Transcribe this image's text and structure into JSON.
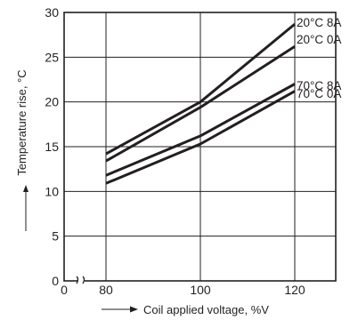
{
  "chart_data": {
    "type": "line",
    "xlabel": "Coil applied voltage, %V",
    "ylabel": "Temperature rise, °C",
    "xlim": [
      80,
      120
    ],
    "ylim": [
      0,
      30
    ],
    "x_axis_break": true,
    "x_ticks": [
      "0",
      "80",
      "100",
      "120"
    ],
    "y_ticks": [
      "0",
      "5",
      "10",
      "15",
      "20",
      "25",
      "30"
    ],
    "grid": true,
    "series": [
      {
        "name": "20°C 8A",
        "x": [
          80,
          100,
          120
        ],
        "values": [
          14.2,
          20.0,
          28.7
        ]
      },
      {
        "name": "20°C 0A",
        "x": [
          80,
          100,
          120
        ],
        "values": [
          13.4,
          19.4,
          26.2
        ]
      },
      {
        "name": "70°C 8A",
        "x": [
          80,
          100,
          120
        ],
        "values": [
          11.8,
          16.2,
          22.0
        ]
      },
      {
        "name": "70°C 0A",
        "x": [
          80,
          100,
          120
        ],
        "values": [
          10.9,
          15.3,
          21.2
        ]
      }
    ],
    "colors": {
      "ink": "#231f20",
      "background": "#ffffff"
    }
  }
}
